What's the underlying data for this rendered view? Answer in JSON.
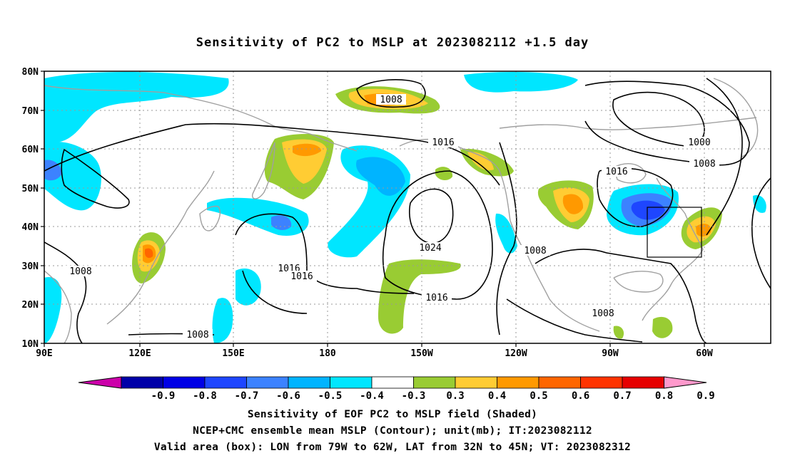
{
  "title": "Sensitivity of PC2 to MSLP at 2023082112 +1.5 day",
  "lat_labels": [
    "80N",
    "70N",
    "60N",
    "50N",
    "40N",
    "30N",
    "20N",
    "10N"
  ],
  "lon_labels": [
    "90E",
    "120E",
    "150E",
    "180",
    "150W",
    "120W",
    "90W",
    "60W"
  ],
  "contour_labels": [
    {
      "id": "c1008-arctic",
      "text": "1008"
    },
    {
      "id": "c1016-pacific-n",
      "text": "1016"
    },
    {
      "id": "c1000-atlantic",
      "text": "1000"
    },
    {
      "id": "c1008-atlantic",
      "text": "1008"
    },
    {
      "id": "c1016-na",
      "text": "1016"
    },
    {
      "id": "c1024-high",
      "text": "1024"
    },
    {
      "id": "c1008-pacific-e",
      "text": "1008"
    },
    {
      "id": "c1016-west-a",
      "text": "1016"
    },
    {
      "id": "c1016-west-b",
      "text": "1016"
    },
    {
      "id": "c1016-sub",
      "text": "1016"
    },
    {
      "id": "c1008-asia",
      "text": "1008"
    },
    {
      "id": "c1008-wpac",
      "text": "1008"
    },
    {
      "id": "c1008-gulf",
      "text": "1008"
    }
  ],
  "colorbar": {
    "labels": [
      "-0.9",
      "-0.8",
      "-0.7",
      "-0.6",
      "-0.5",
      "-0.4",
      "-0.3",
      "0.3",
      "0.4",
      "0.5",
      "0.6",
      "0.7",
      "0.8",
      "0.9"
    ],
    "colors": [
      "#0000a8",
      "#0000e6",
      "#1e46ff",
      "#3c82ff",
      "#00b4ff",
      "#00e6ff",
      "#ffffff",
      "#99cc33",
      "#ffcc33",
      "#ff9900",
      "#ff6600",
      "#ff3300",
      "#e60000"
    ],
    "left_arrow_color": "#cc00aa",
    "right_arrow_color": "#ff99cc"
  },
  "valid_box": {
    "lon_west": -79,
    "lon_east": -62,
    "lat_south": 32,
    "lat_north": 45
  },
  "footer": {
    "line1": "Sensitivity of EOF PC2 to MSLP field (Shaded)",
    "line2": "NCEP+CMC ensemble mean MSLP (Contour); unit(mb); IT:2023082112",
    "line3": "Valid area (box): LON from 79W to 62W, LAT from 32N to 45N; VT: 2023082312"
  }
}
